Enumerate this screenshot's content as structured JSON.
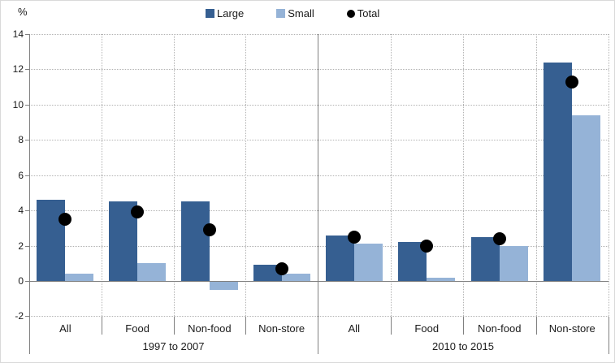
{
  "chart_data": {
    "type": "bar",
    "title": "",
    "ylabel": "%",
    "y_ticks": [
      14,
      12,
      10,
      8,
      6,
      4,
      2,
      0,
      -2
    ],
    "ylim": [
      -2,
      14
    ],
    "grid": "dotted",
    "legend_position": "top",
    "groups": [
      {
        "label": "1997 to 2007",
        "categories": [
          "All",
          "Food",
          "Non-food",
          "Non-store"
        ]
      },
      {
        "label": "2010 to 2015",
        "categories": [
          "All",
          "Food",
          "Non-food",
          "Non-store"
        ]
      }
    ],
    "series": [
      {
        "name": "Large",
        "type": "bar",
        "color": "#365F91",
        "values": [
          [
            4.6,
            4.5,
            4.5,
            0.9
          ],
          [
            2.6,
            2.2,
            2.5,
            12.4
          ]
        ]
      },
      {
        "name": "Small",
        "type": "bar",
        "color": "#95B3D7",
        "values": [
          [
            0.4,
            1.0,
            -0.5,
            0.4
          ],
          [
            2.1,
            0.2,
            2.0,
            9.4
          ]
        ]
      },
      {
        "name": "Total",
        "type": "point",
        "color": "#000000",
        "values": [
          [
            3.5,
            3.9,
            2.9,
            0.7
          ],
          [
            2.5,
            2.0,
            2.4,
            11.3
          ]
        ]
      }
    ],
    "colors": {
      "grid": "#B3B3B3",
      "axis": "#808080",
      "text": "#1A1A1A"
    }
  }
}
